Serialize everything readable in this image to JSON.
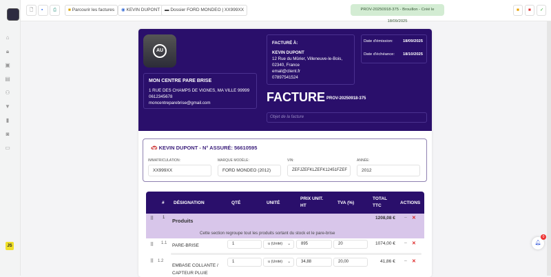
{
  "sidebar": {
    "items": [
      "home",
      "lock",
      "inbox",
      "document",
      "users",
      "filter",
      "book",
      "clipboard",
      "inbox-tray"
    ],
    "user_badge": "JS"
  },
  "toolbar": {
    "browse_label": "Parcourir les factures",
    "client_label": "KEVIN DUPONT",
    "dossier_label": "Dossier FORD MONDEO | XX999XX",
    "status": "PROV-20250918-375 - Brouillon - Créé le 18/09/2025"
  },
  "invoice": {
    "company": {
      "name": "MON CENTRE PARE BRISE",
      "address": "1 RUE DES CHAMPS DE VIGNES, MA VILLE 99999",
      "phone": "0612345678",
      "email": "moncentreparebrise@gmail.com"
    },
    "billed_to": {
      "label": "FACTURÉ À:",
      "name": "KEVIN DUPONT",
      "address1": "12 Rue du Mûrier, Villeneuve-le-Bois,",
      "address2": "02340, France",
      "email": "email@client.fr",
      "phone": "07897541524"
    },
    "dates": {
      "issue_label": "Date d'émission:",
      "issue": "18/09/2025",
      "due_label": "Date d'échéance:",
      "due": "18/10/2025"
    },
    "title": "FACTURE",
    "number": "PROV-20250918-375",
    "object_placeholder": "Objet de la facture"
  },
  "vehicle": {
    "title": "KEVIN DUPONT - N° ASSURÉ: 56610595",
    "fields": [
      {
        "label": "IMMATRICULATION:",
        "value": "XX999XX"
      },
      {
        "label": "MARQUE MODÈLE:",
        "value": "FORD MONDEO (2012)"
      },
      {
        "label": "VIN:",
        "value": "ZEFJZEFKLZEFK12451FZEF"
      },
      {
        "label": "ANNÉE:",
        "value": "2012"
      }
    ]
  },
  "table": {
    "headers": {
      "num": "#",
      "designation": "DÉSIGNATION",
      "qty": "QTÉ",
      "unit": "UNITÉ",
      "price1": "PRIX UNIT.",
      "price2": "HT",
      "tva": "TVA (%)",
      "total1": "TOTAL",
      "total2": "TTC",
      "actions": "ACTIONS"
    },
    "section": {
      "num": "1",
      "name": "Produits",
      "total": "1208,08 €",
      "description": "Cette section regroupe tout les produits sortant du stock et le pare-brise"
    },
    "rows": [
      {
        "num": "1.1",
        "designation": "PARE-BRISE",
        "designation2": "",
        "qty": "1",
        "unit": "u (Unité)",
        "price": "895",
        "tva": "20",
        "total": "1074,00 €"
      },
      {
        "num": "1.2",
        "designation": "EMBASE COLLANTE /",
        "designation2": "CAPTEUR PLUIE",
        "qty": "1",
        "unit": "u (Unité)",
        "price": "34,88",
        "tva": "20,00",
        "total": "41,86 €"
      }
    ]
  },
  "notification_count": "0",
  "colors": {
    "primary": "#2a0f6b",
    "section": "#d8c6ea",
    "status_bg": "#d3ecd3"
  }
}
